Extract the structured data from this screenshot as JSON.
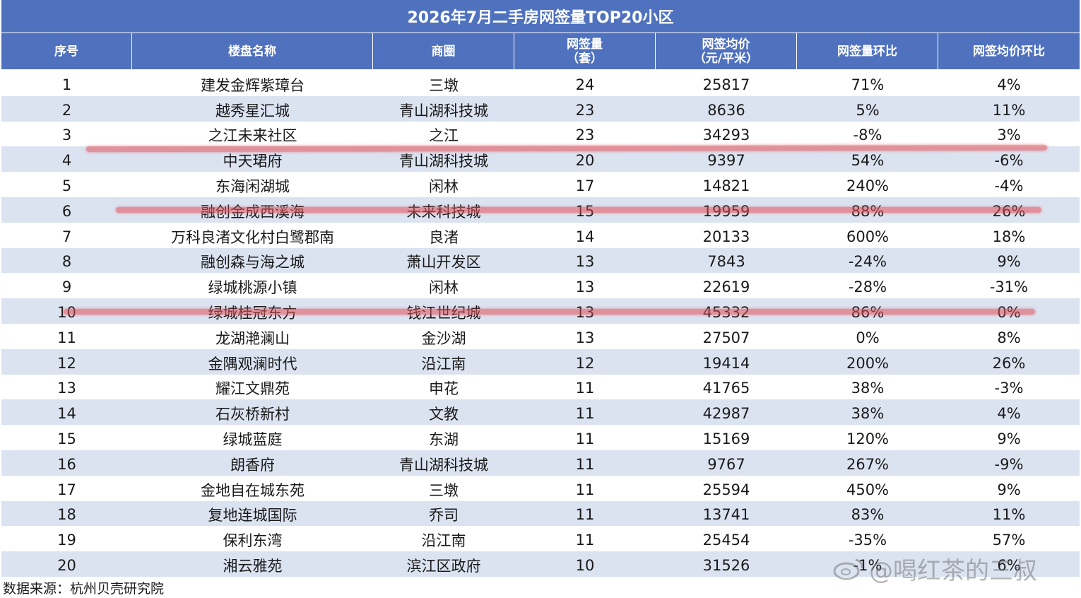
{
  "title": "2026年7月二手房网签量TOP20小区",
  "headers": [
    [
      "序号"
    ],
    [
      "楼盘名称"
    ],
    [
      "商圈"
    ],
    [
      "网签量",
      "（套）"
    ],
    [
      "网签均价",
      "（元/平米）"
    ],
    [
      "网签量环比"
    ],
    [
      "网签均价环比"
    ]
  ],
  "rows": [
    [
      "1",
      "建发金辉紫璋台",
      "三墩",
      "24",
      "25817",
      "71%",
      "4%"
    ],
    [
      "2",
      "越秀星汇城",
      "青山湖科技城",
      "23",
      "8636",
      "5%",
      "11%"
    ],
    [
      "3",
      "之江未来社区",
      "之江",
      "23",
      "34293",
      "-8%",
      "3%"
    ],
    [
      "4",
      "中天珺府",
      "青山湖科技城",
      "20",
      "9397",
      "54%",
      "-6%"
    ],
    [
      "5",
      "东海闲湖城",
      "闲林",
      "17",
      "14821",
      "240%",
      "-4%"
    ],
    [
      "6",
      "融创金成西溪海",
      "未来科技城",
      "15",
      "19959",
      "88%",
      "26%"
    ],
    [
      "7",
      "万科良渚文化村白鹭郡南",
      "良渚",
      "14",
      "20133",
      "600%",
      "18%"
    ],
    [
      "8",
      "融创森与海之城",
      "萧山开发区",
      "13",
      "7843",
      "-24%",
      "9%"
    ],
    [
      "9",
      "绿城桃源小镇",
      "闲林",
      "13",
      "22619",
      "-28%",
      "-31%"
    ],
    [
      "10",
      "绿城桂冠东方",
      "钱江世纪城",
      "13",
      "45332",
      "86%",
      "0%"
    ],
    [
      "11",
      "龙湖滟澜山",
      "金沙湖",
      "13",
      "27507",
      "0%",
      "8%"
    ],
    [
      "12",
      "金隅观澜时代",
      "沿江南",
      "12",
      "19414",
      "200%",
      "26%"
    ],
    [
      "13",
      "耀江文鼎苑",
      "申花",
      "11",
      "41765",
      "38%",
      "-3%"
    ],
    [
      "14",
      "石灰桥新村",
      "文教",
      "11",
      "42987",
      "38%",
      "4%"
    ],
    [
      "15",
      "绿城蓝庭",
      "东湖",
      "11",
      "15169",
      "120%",
      "9%"
    ],
    [
      "16",
      "朗香府",
      "青山湖科技城",
      "11",
      "9767",
      "267%",
      "-9%"
    ],
    [
      "17",
      "金地自在城东苑",
      "三墩",
      "11",
      "25594",
      "450%",
      "9%"
    ],
    [
      "18",
      "复地连城国际",
      "乔司",
      "11",
      "13741",
      "83%",
      "11%"
    ],
    [
      "19",
      "保利东湾",
      "沿江南",
      "11",
      "25454",
      "-35%",
      "57%"
    ],
    [
      "20",
      "湘云雅苑",
      "滨江区政府",
      "10",
      "31526",
      "-1%",
      "6%"
    ]
  ],
  "source": "数据来源：杭州贝壳研究院",
  "watermark": "@喝红茶的三叔",
  "colors": {
    "header": "#4f71be",
    "alt_row": "#dbe3f1",
    "strike": "#e25056"
  }
}
